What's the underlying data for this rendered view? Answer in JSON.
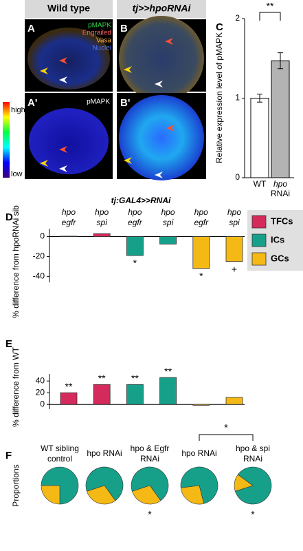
{
  "image_panels": {
    "header_wt": "Wild type",
    "header_rnai": "tj>>hpoRNAi",
    "letters": [
      "A",
      "A'",
      "B",
      "B'"
    ],
    "channels": [
      "pMAPK",
      "Engrailed",
      "Vasa",
      "Nuclei"
    ],
    "channel_colors": [
      "#33d04a",
      "#ff6060",
      "#ffb347",
      "#5577ff"
    ],
    "single_channel": "pMAPK",
    "scale_high": "high",
    "scale_low": "low"
  },
  "chart_data": [
    {
      "type": "bar",
      "letter": "C",
      "ylabel": "Relative expression level of pMAPK",
      "categories": [
        [
          "WT"
        ],
        [
          "hpo",
          "RNAi"
        ]
      ],
      "values": [
        1.0,
        1.47
      ],
      "errors": [
        0.05,
        0.1
      ],
      "colors": [
        "#ffffff",
        "#b3b3b3"
      ],
      "ylim": [
        0,
        2
      ],
      "yticks": [
        0,
        1,
        2
      ],
      "significance": "**"
    },
    {
      "type": "grouped",
      "letter": "D",
      "title": "tj:GAL4>>RNAi",
      "ylabel": "% difference from hpoRNAi sib",
      "categories": [
        [
          "hpo",
          "egfr"
        ],
        [
          "hpo",
          "spi"
        ],
        [
          "hpo",
          "egfr"
        ],
        [
          "hpo",
          "spi"
        ],
        [
          "hpo",
          "egfr"
        ],
        [
          "hpo",
          "spi"
        ]
      ],
      "series": [
        {
          "name": "TFCs",
          "color": "#d42a5c",
          "values": [
            0.5,
            3,
            null,
            null,
            null,
            null
          ]
        },
        {
          "name": "ICs",
          "color": "#16a08a",
          "values": [
            null,
            null,
            -19,
            -7.5,
            null,
            null
          ]
        },
        {
          "name": "GCs",
          "color": "#f5b915",
          "values": [
            null,
            null,
            null,
            null,
            -32,
            -25
          ]
        }
      ],
      "marks": [
        null,
        null,
        "*",
        null,
        "*",
        "+"
      ],
      "ylim": [
        -46,
        8
      ],
      "yticks": [
        0,
        -20,
        -40
      ]
    },
    {
      "type": "grouped",
      "letter": "E",
      "ylabel": "% difference from WT",
      "series": [
        {
          "color": "#d42a5c",
          "values": [
            20,
            34,
            null,
            null,
            null,
            null
          ]
        },
        {
          "color": "#16a08a",
          "values": [
            null,
            null,
            34,
            46,
            null,
            null
          ]
        },
        {
          "color": "#f5b915",
          "values": [
            null,
            null,
            null,
            null,
            -1.5,
            12
          ]
        }
      ],
      "marks": [
        "**",
        "**",
        "**",
        "**",
        null,
        null
      ],
      "ylim": [
        -8,
        52
      ],
      "yticks": [
        0,
        20,
        40
      ]
    },
    {
      "type": "pie",
      "letter": "F",
      "ylabel": "Proportions",
      "categories": [
        [
          "WT sibling",
          "control"
        ],
        [
          "hpo RNAi"
        ],
        [
          "hpo & Egfr",
          "RNAi"
        ],
        [
          "hpo RNAi"
        ],
        [
          "hpo & spi",
          "RNAi"
        ]
      ],
      "colors": [
        "#16a08a",
        "#f5b915"
      ],
      "values": [
        [
          75,
          25
        ],
        [
          70,
          30
        ],
        [
          70,
          30
        ],
        [
          73,
          27
        ],
        [
          85,
          15
        ]
      ],
      "marks": [
        null,
        null,
        "*",
        null,
        "*"
      ],
      "comparison": "*"
    }
  ]
}
